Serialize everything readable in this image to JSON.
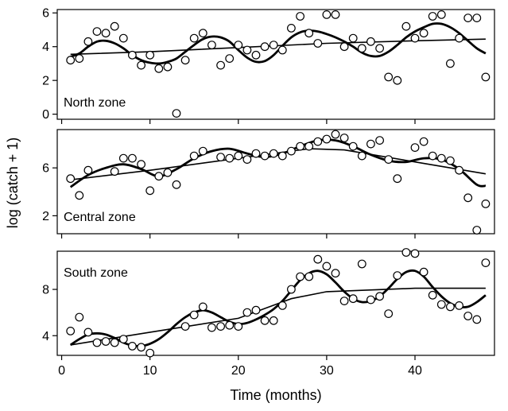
{
  "chart_data": {
    "type": "scatter",
    "xlabel": "Time (months)",
    "ylabel": "log (catch + 1)",
    "x_ticks": [
      0,
      10,
      20,
      30,
      40
    ],
    "xlim": [
      -0.5,
      49
    ],
    "panels": [
      {
        "label": "North zone",
        "ylim": [
          -0.3,
          6.2
        ],
        "y_ticks": [
          0,
          2,
          4,
          6
        ],
        "points": [
          [
            1,
            3.2
          ],
          [
            2,
            3.3
          ],
          [
            3,
            4.3
          ],
          [
            4,
            4.9
          ],
          [
            5,
            4.8
          ],
          [
            6,
            5.2
          ],
          [
            7,
            4.5
          ],
          [
            8,
            3.5
          ],
          [
            9,
            2.9
          ],
          [
            10,
            3.5
          ],
          [
            11,
            2.7
          ],
          [
            12,
            2.8
          ],
          [
            13,
            0.05
          ],
          [
            14,
            3.2
          ],
          [
            15,
            4.5
          ],
          [
            16,
            4.8
          ],
          [
            17,
            4.1
          ],
          [
            18,
            2.9
          ],
          [
            19,
            3.3
          ],
          [
            20,
            4.1
          ],
          [
            21,
            3.8
          ],
          [
            22,
            3.5
          ],
          [
            23,
            4.0
          ],
          [
            24,
            4.1
          ],
          [
            25,
            3.8
          ],
          [
            26,
            5.1
          ],
          [
            27,
            5.8
          ],
          [
            28,
            4.8
          ],
          [
            29,
            4.2
          ],
          [
            30,
            5.9
          ],
          [
            31,
            5.9
          ],
          [
            32,
            4.0
          ],
          [
            33,
            4.5
          ],
          [
            34,
            3.9
          ],
          [
            35,
            4.3
          ],
          [
            36,
            3.9
          ],
          [
            37,
            2.2
          ],
          [
            38,
            2.0
          ],
          [
            39,
            5.2
          ],
          [
            40,
            4.5
          ],
          [
            41,
            4.8
          ],
          [
            42,
            5.8
          ],
          [
            43,
            5.9
          ],
          [
            44,
            3.0
          ],
          [
            45,
            4.5
          ],
          [
            46,
            5.7
          ],
          [
            47,
            5.7
          ],
          [
            48,
            2.2
          ]
        ],
        "trend": [
          [
            1,
            3.55
          ],
          [
            10,
            3.7
          ],
          [
            20,
            3.95
          ],
          [
            30,
            4.2
          ],
          [
            40,
            4.35
          ],
          [
            48,
            4.45
          ]
        ],
        "smooth": [
          [
            1,
            3.4
          ],
          [
            2,
            3.6
          ],
          [
            3,
            4.0
          ],
          [
            4,
            4.3
          ],
          [
            5,
            4.35
          ],
          [
            6,
            4.2
          ],
          [
            7,
            3.9
          ],
          [
            8,
            3.5
          ],
          [
            9,
            3.2
          ],
          [
            10,
            3.05
          ],
          [
            11,
            3.0
          ],
          [
            12,
            3.1
          ],
          [
            13,
            3.3
          ],
          [
            14,
            3.7
          ],
          [
            15,
            4.1
          ],
          [
            16,
            4.45
          ],
          [
            17,
            4.6
          ],
          [
            18,
            4.55
          ],
          [
            19,
            4.3
          ],
          [
            20,
            3.8
          ],
          [
            21,
            3.35
          ],
          [
            22,
            3.1
          ],
          [
            23,
            3.15
          ],
          [
            24,
            3.5
          ],
          [
            25,
            4.05
          ],
          [
            26,
            4.55
          ],
          [
            27,
            4.85
          ],
          [
            28,
            4.95
          ],
          [
            29,
            4.9
          ],
          [
            30,
            4.75
          ],
          [
            31,
            4.55
          ],
          [
            32,
            4.3
          ],
          [
            33,
            4.0
          ],
          [
            34,
            3.65
          ],
          [
            35,
            3.45
          ],
          [
            36,
            3.45
          ],
          [
            37,
            3.7
          ],
          [
            38,
            4.1
          ],
          [
            39,
            4.55
          ],
          [
            40,
            4.9
          ],
          [
            41,
            5.15
          ],
          [
            42,
            5.35
          ],
          [
            43,
            5.35
          ],
          [
            44,
            5.15
          ],
          [
            45,
            4.8
          ],
          [
            46,
            4.35
          ],
          [
            47,
            3.9
          ],
          [
            48,
            3.6
          ]
        ]
      },
      {
        "label": "Central zone",
        "ylim": [
          0.5,
          9.2
        ],
        "y_ticks": [
          2,
          6
        ],
        "points": [
          [
            1,
            5.1
          ],
          [
            2,
            3.7
          ],
          [
            3,
            5.8
          ],
          [
            6,
            5.7
          ],
          [
            7,
            6.8
          ],
          [
            8,
            6.8
          ],
          [
            9,
            6.3
          ],
          [
            10,
            4.1
          ],
          [
            11,
            5.3
          ],
          [
            12,
            5.6
          ],
          [
            13,
            4.6
          ],
          [
            15,
            7.0
          ],
          [
            16,
            7.4
          ],
          [
            18,
            6.9
          ],
          [
            19,
            6.8
          ],
          [
            20,
            7.0
          ],
          [
            21,
            6.7
          ],
          [
            22,
            7.2
          ],
          [
            23,
            7.0
          ],
          [
            24,
            7.2
          ],
          [
            25,
            7.0
          ],
          [
            26,
            7.4
          ],
          [
            27,
            7.8
          ],
          [
            28,
            7.8
          ],
          [
            29,
            8.2
          ],
          [
            30,
            8.4
          ],
          [
            31,
            8.8
          ],
          [
            32,
            8.5
          ],
          [
            33,
            7.8
          ],
          [
            34,
            7.0
          ],
          [
            35,
            8.0
          ],
          [
            36,
            8.3
          ],
          [
            37,
            6.7
          ],
          [
            38,
            5.1
          ],
          [
            40,
            7.7
          ],
          [
            41,
            8.2
          ],
          [
            42,
            7.0
          ],
          [
            43,
            6.8
          ],
          [
            44,
            6.6
          ],
          [
            45,
            5.8
          ],
          [
            46,
            3.5
          ],
          [
            47,
            0.8
          ],
          [
            48,
            3.0
          ]
        ],
        "trend": [
          [
            1,
            5.0
          ],
          [
            10,
            5.8
          ],
          [
            20,
            6.8
          ],
          [
            28,
            7.6
          ],
          [
            32,
            7.5
          ],
          [
            40,
            6.5
          ],
          [
            48,
            5.5
          ]
        ],
        "smooth": [
          [
            1,
            4.4
          ],
          [
            3,
            5.4
          ],
          [
            5,
            6.0
          ],
          [
            7,
            6.3
          ],
          [
            9,
            5.9
          ],
          [
            11,
            5.3
          ],
          [
            13,
            5.9
          ],
          [
            15,
            6.8
          ],
          [
            17,
            7.4
          ],
          [
            19,
            7.6
          ],
          [
            21,
            7.2
          ],
          [
            23,
            6.9
          ],
          [
            25,
            7.2
          ],
          [
            27,
            7.8
          ],
          [
            29,
            8.3
          ],
          [
            31,
            8.3
          ],
          [
            33,
            7.8
          ],
          [
            35,
            7.1
          ],
          [
            37,
            6.6
          ],
          [
            39,
            6.5
          ],
          [
            41,
            6.8
          ],
          [
            43,
            6.7
          ],
          [
            45,
            5.9
          ],
          [
            47,
            4.6
          ],
          [
            48,
            4.5
          ]
        ]
      },
      {
        "label": "South zone",
        "ylim": [
          2.3,
          11.3
        ],
        "y_ticks": [
          4,
          8
        ],
        "points": [
          [
            1,
            4.4
          ],
          [
            2,
            5.6
          ],
          [
            3,
            4.3
          ],
          [
            4,
            3.4
          ],
          [
            5,
            3.5
          ],
          [
            6,
            3.4
          ],
          [
            7,
            3.7
          ],
          [
            8,
            3.1
          ],
          [
            9,
            3.0
          ],
          [
            10,
            2.5
          ],
          [
            14,
            4.8
          ],
          [
            15,
            5.8
          ],
          [
            16,
            6.5
          ],
          [
            17,
            4.7
          ],
          [
            18,
            4.8
          ],
          [
            19,
            4.9
          ],
          [
            20,
            4.8
          ],
          [
            21,
            6.0
          ],
          [
            22,
            6.2
          ],
          [
            23,
            5.3
          ],
          [
            24,
            5.3
          ],
          [
            25,
            6.6
          ],
          [
            26,
            8.0
          ],
          [
            27,
            9.1
          ],
          [
            28,
            9.1
          ],
          [
            29,
            10.6
          ],
          [
            30,
            10.0
          ],
          [
            31,
            9.4
          ],
          [
            32,
            7.0
          ],
          [
            33,
            7.2
          ],
          [
            34,
            10.2
          ],
          [
            35,
            7.1
          ],
          [
            36,
            7.4
          ],
          [
            37,
            5.9
          ],
          [
            38,
            9.2
          ],
          [
            39,
            11.2
          ],
          [
            40,
            11.1
          ],
          [
            41,
            9.5
          ],
          [
            42,
            7.5
          ],
          [
            43,
            6.7
          ],
          [
            44,
            6.5
          ],
          [
            45,
            6.6
          ],
          [
            46,
            5.7
          ],
          [
            47,
            5.4
          ],
          [
            48,
            10.3
          ]
        ],
        "trend": [
          [
            1,
            3.2
          ],
          [
            10,
            4.3
          ],
          [
            20,
            5.5
          ],
          [
            26,
            7.2
          ],
          [
            30,
            7.8
          ],
          [
            40,
            8.1
          ],
          [
            48,
            8.1
          ]
        ],
        "smooth": [
          [
            1,
            3.2
          ],
          [
            2,
            3.7
          ],
          [
            3,
            4.1
          ],
          [
            4,
            4.2
          ],
          [
            5,
            4.1
          ],
          [
            6,
            3.8
          ],
          [
            7,
            3.4
          ],
          [
            8,
            3.15
          ],
          [
            9,
            3.1
          ],
          [
            10,
            3.3
          ],
          [
            11,
            3.7
          ],
          [
            12,
            4.3
          ],
          [
            13,
            5.0
          ],
          [
            14,
            5.6
          ],
          [
            15,
            6.0
          ],
          [
            16,
            6.2
          ],
          [
            17,
            6.0
          ],
          [
            18,
            5.6
          ],
          [
            19,
            5.2
          ],
          [
            20,
            5.0
          ],
          [
            21,
            5.1
          ],
          [
            22,
            5.4
          ],
          [
            23,
            5.8
          ],
          [
            24,
            6.3
          ],
          [
            25,
            7.0
          ],
          [
            26,
            7.9
          ],
          [
            27,
            8.8
          ],
          [
            28,
            9.4
          ],
          [
            29,
            9.6
          ],
          [
            30,
            9.3
          ],
          [
            31,
            8.6
          ],
          [
            32,
            7.8
          ],
          [
            33,
            7.2
          ],
          [
            34,
            6.9
          ],
          [
            35,
            7.0
          ],
          [
            36,
            7.4
          ],
          [
            37,
            8.1
          ],
          [
            38,
            8.9
          ],
          [
            39,
            9.5
          ],
          [
            40,
            9.6
          ],
          [
            41,
            9.1
          ],
          [
            42,
            8.2
          ],
          [
            43,
            7.4
          ],
          [
            44,
            6.8
          ],
          [
            45,
            6.5
          ],
          [
            46,
            6.5
          ],
          [
            47,
            6.9
          ],
          [
            48,
            7.5
          ]
        ]
      }
    ]
  }
}
